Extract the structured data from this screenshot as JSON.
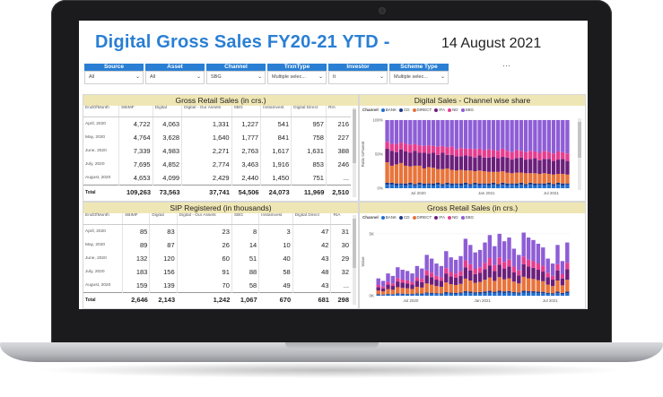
{
  "dashboard": {
    "title": "Digital Gross Sales FY20-21 YTD -",
    "date": "14 August 2021",
    "more_icon": "ellipsis-icon"
  },
  "filters": [
    {
      "label": "Source",
      "value": "All"
    },
    {
      "label": "Asset",
      "value": "All"
    },
    {
      "label": "Channel",
      "value": "SBG"
    },
    {
      "label": "TrxnType",
      "value": "Multiple selec..."
    },
    {
      "label": "Investor",
      "value": "It"
    },
    {
      "label": "Scheme Type",
      "value": "Multiple selec..."
    }
  ],
  "gross_table": {
    "title": "Gross Retail Sales (in crs.)",
    "columns": [
      "EndOfMonth",
      "SBIMF",
      "Digital",
      "Digital - Our Assets",
      "SBG",
      "InstaInvest",
      "Digital Direct",
      "RIA"
    ],
    "rows": [
      {
        "month": "April, 2020",
        "cells": [
          "4,722",
          "4,063",
          "1,331",
          "1,227",
          "541",
          "957",
          "216"
        ]
      },
      {
        "month": "May, 2020",
        "cells": [
          "4,764",
          "3,628",
          "1,640",
          "1,777",
          "841",
          "758",
          "227"
        ]
      },
      {
        "month": "June, 2020",
        "cells": [
          "7,339",
          "4,983",
          "2,271",
          "2,763",
          "1,617",
          "1,631",
          "388"
        ]
      },
      {
        "month": "July, 2020",
        "cells": [
          "7,695",
          "4,852",
          "2,774",
          "3,463",
          "1,916",
          "853",
          "246"
        ]
      },
      {
        "month": "August, 2020",
        "cells": [
          "4,653",
          "4,099",
          "2,429",
          "2,440",
          "1,450",
          "751",
          "..."
        ]
      }
    ],
    "total": {
      "label": "Total",
      "cells": [
        "109,263",
        "73,563",
        "37,741",
        "54,506",
        "24,073",
        "11,969",
        "2,510"
      ]
    }
  },
  "sip_table": {
    "title": "SIP Registered (in thousands)",
    "columns": [
      "EndOfMonth",
      "SBIMF",
      "Digital",
      "Digital - Our Assets",
      "SBG",
      "InstaInvest",
      "Digital Direct",
      "RIA"
    ],
    "rows": [
      {
        "month": "April, 2020",
        "cells": [
          "85",
          "83",
          "23",
          "8",
          "3",
          "47",
          "31"
        ]
      },
      {
        "month": "May, 2020",
        "cells": [
          "89",
          "87",
          "26",
          "14",
          "10",
          "42",
          "30"
        ]
      },
      {
        "month": "June, 2020",
        "cells": [
          "132",
          "120",
          "60",
          "51",
          "40",
          "43",
          "29"
        ]
      },
      {
        "month": "July, 2020",
        "cells": [
          "183",
          "156",
          "91",
          "88",
          "58",
          "48",
          "32"
        ]
      },
      {
        "month": "August, 2020",
        "cells": [
          "159",
          "139",
          "70",
          "58",
          "49",
          "43",
          "..."
        ]
      }
    ],
    "total": {
      "label": "Total",
      "cells": [
        "2,646",
        "2,143",
        "1,242",
        "1,067",
        "670",
        "681",
        "298"
      ]
    }
  },
  "share_chart_title": "Digital Sales - Channel wise share",
  "gross_chart_title": "Gross Retail Sales (in crs.)",
  "legend": {
    "label": "Channel",
    "items": [
      {
        "name": "BANK",
        "color": "#1f6fd1"
      },
      {
        "name": "CD",
        "color": "#1e3a8a"
      },
      {
        "name": "DIRECT",
        "color": "#e8743b"
      },
      {
        "name": "IFA",
        "color": "#6b1f7a"
      },
      {
        "name": "ND",
        "color": "#e53d8f"
      },
      {
        "name": "SBG",
        "color": "#8e5dd6"
      }
    ]
  },
  "chart_data": [
    {
      "type": "bar",
      "title": "Digital Sales - Channel wise share",
      "ylabel": "Ratio toParent",
      "y_ticks": [
        "100%",
        "50%",
        "0%"
      ],
      "x_ticks": [
        "Jul 2020",
        "Jan 2021",
        "Jul 2021"
      ],
      "stacked": true,
      "series_order": [
        "BANK",
        "CD",
        "DIRECT",
        "IFA",
        "ND",
        "SBG"
      ],
      "stacks": [
        [
          0.05,
          0.03,
          0.3,
          0.2,
          0.1,
          0.32
        ],
        [
          0.05,
          0.03,
          0.25,
          0.22,
          0.1,
          0.35
        ],
        [
          0.04,
          0.03,
          0.28,
          0.18,
          0.12,
          0.35
        ],
        [
          0.05,
          0.02,
          0.3,
          0.2,
          0.1,
          0.33
        ],
        [
          0.04,
          0.03,
          0.26,
          0.21,
          0.11,
          0.35
        ],
        [
          0.05,
          0.03,
          0.24,
          0.2,
          0.12,
          0.36
        ],
        [
          0.04,
          0.02,
          0.27,
          0.22,
          0.1,
          0.35
        ],
        [
          0.05,
          0.03,
          0.25,
          0.19,
          0.11,
          0.37
        ],
        [
          0.04,
          0.03,
          0.22,
          0.23,
          0.1,
          0.38
        ],
        [
          0.05,
          0.02,
          0.24,
          0.2,
          0.12,
          0.37
        ],
        [
          0.04,
          0.03,
          0.23,
          0.22,
          0.1,
          0.38
        ],
        [
          0.05,
          0.03,
          0.2,
          0.21,
          0.12,
          0.39
        ],
        [
          0.04,
          0.02,
          0.22,
          0.24,
          0.1,
          0.38
        ],
        [
          0.05,
          0.03,
          0.21,
          0.2,
          0.11,
          0.4
        ],
        [
          0.04,
          0.03,
          0.2,
          0.22,
          0.12,
          0.39
        ],
        [
          0.05,
          0.02,
          0.19,
          0.21,
          0.1,
          0.43
        ],
        [
          0.04,
          0.03,
          0.2,
          0.2,
          0.12,
          0.41
        ],
        [
          0.05,
          0.03,
          0.18,
          0.22,
          0.1,
          0.42
        ],
        [
          0.04,
          0.02,
          0.2,
          0.21,
          0.11,
          0.42
        ],
        [
          0.05,
          0.03,
          0.17,
          0.2,
          0.12,
          0.43
        ],
        [
          0.04,
          0.03,
          0.19,
          0.22,
          0.1,
          0.42
        ],
        [
          0.05,
          0.02,
          0.18,
          0.2,
          0.11,
          0.44
        ],
        [
          0.04,
          0.03,
          0.17,
          0.21,
          0.12,
          0.43
        ],
        [
          0.05,
          0.03,
          0.16,
          0.22,
          0.1,
          0.44
        ],
        [
          0.04,
          0.02,
          0.18,
          0.2,
          0.11,
          0.45
        ],
        [
          0.05,
          0.03,
          0.17,
          0.21,
          0.12,
          0.42
        ],
        [
          0.04,
          0.03,
          0.16,
          0.22,
          0.1,
          0.45
        ],
        [
          0.05,
          0.02,
          0.15,
          0.2,
          0.11,
          0.47
        ],
        [
          0.04,
          0.03,
          0.16,
          0.21,
          0.12,
          0.44
        ],
        [
          0.05,
          0.03,
          0.15,
          0.22,
          0.1,
          0.45
        ],
        [
          0.04,
          0.02,
          0.16,
          0.2,
          0.11,
          0.47
        ],
        [
          0.05,
          0.03,
          0.14,
          0.21,
          0.12,
          0.45
        ],
        [
          0.04,
          0.03,
          0.15,
          0.22,
          0.1,
          0.46
        ],
        [
          0.05,
          0.02,
          0.14,
          0.2,
          0.11,
          0.48
        ],
        [
          0.04,
          0.03,
          0.15,
          0.21,
          0.12,
          0.45
        ],
        [
          0.05,
          0.03,
          0.13,
          0.22,
          0.1,
          0.47
        ],
        [
          0.04,
          0.02,
          0.14,
          0.2,
          0.11,
          0.49
        ],
        [
          0.05,
          0.03,
          0.13,
          0.21,
          0.12,
          0.46
        ],
        [
          0.04,
          0.03,
          0.14,
          0.22,
          0.1,
          0.47
        ],
        [
          0.05,
          0.02,
          0.13,
          0.2,
          0.11,
          0.49
        ]
      ]
    },
    {
      "type": "bar",
      "title": "Gross Retail Sales (in crs.)",
      "ylabel": "Value",
      "y_ticks": [
        "5K",
        "0K"
      ],
      "ylim": [
        0,
        5500
      ],
      "x_ticks": [
        "Jul 2020",
        "Jan 2021",
        "Jul 2021"
      ],
      "stacked": true,
      "series_order": [
        "BANK",
        "CD",
        "DIRECT",
        "IFA",
        "ND",
        "SBG"
      ],
      "totals": [
        1400,
        1200,
        1800,
        1600,
        2300,
        2100,
        2000,
        1800,
        2400,
        2200,
        3300,
        3000,
        2600,
        2400,
        3600,
        3100,
        2900,
        3200,
        4600,
        4100,
        3500,
        3700,
        4300,
        4900,
        4000,
        5000,
        4400,
        4700,
        3800,
        3300,
        5100,
        4700,
        4500,
        4200,
        3900,
        3000,
        2600,
        4100,
        2800,
        4300
      ]
    }
  ]
}
